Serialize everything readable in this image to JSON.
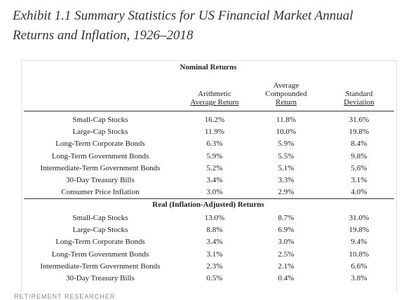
{
  "header": {
    "title": [
      "Exhibit 1.1 Summary Statistics for US Financial Market Annual",
      "Returns and Inflation, 1926–2018"
    ]
  },
  "table": {
    "columns": [
      [
        "Arithmetic",
        "Average Return"
      ],
      [
        "Average",
        "Compounded",
        "Return"
      ],
      [
        "Standard",
        "Deviation"
      ]
    ],
    "sections": [
      {
        "title": "Nominal Returns",
        "rows": [
          [
            "Small-Cap Stocks",
            "16.2%",
            "11.8%",
            "31.6%"
          ],
          [
            "Large-Cap Stocks",
            "11.9%",
            "10.0%",
            "19.8%"
          ],
          [
            "Long-Term Corporate Bonds",
            "6.3%",
            "5.9%",
            "8.4%"
          ],
          [
            "Long-Term Government Bonds",
            "5.9%",
            "5.5%",
            "9.8%"
          ],
          [
            "Intermediate-Term Government Bonds",
            "5.2%",
            "5.1%",
            "5.6%"
          ],
          [
            "30-Day Treasury Bills",
            "3.4%",
            "3.3%",
            "3.1%"
          ],
          [
            "Consumer Price Inflation",
            "3.0%",
            "2.9%",
            "4.0%"
          ]
        ]
      },
      {
        "title": "Real (Inflation-Adjusted) Returns",
        "rows": [
          [
            "Small-Cap Stocks",
            "13.0%",
            "8.7%",
            "31.0%"
          ],
          [
            "Large-Cap Stocks",
            "8.8%",
            "6.9%",
            "19.8%"
          ],
          [
            "Long-Term Corporate Bonds",
            "3.4%",
            "3.0%",
            "9.4%"
          ],
          [
            "Long-Term Government Bonds",
            "3.1%",
            "2.5%",
            "10.8%"
          ],
          [
            "Intermediate-Term Government Bonds",
            "2.3%",
            "2.1%",
            "6.6%"
          ],
          [
            "30-Day Treasury Bills",
            "0.5%",
            "0.4%",
            "3.8%"
          ]
        ]
      }
    ]
  },
  "footer": {
    "source": "RETIREMENT RESEARCHER"
  }
}
